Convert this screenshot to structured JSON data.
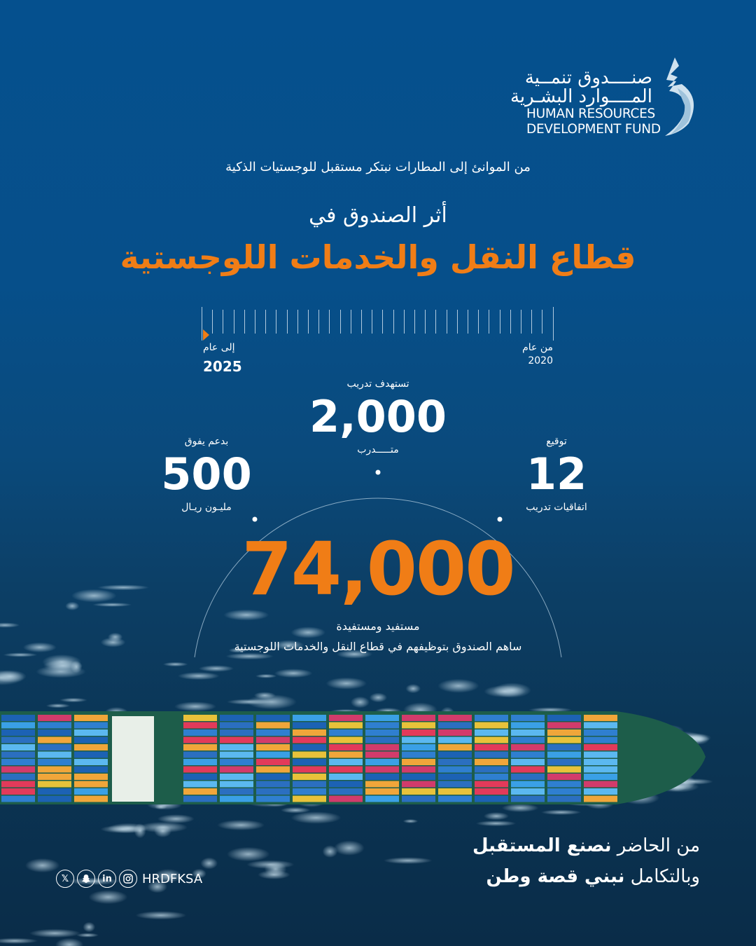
{
  "logo": {
    "arabic_line1": "صنــــدوق تنمــية",
    "arabic_line2": "المــــوارد البشـرية",
    "english_line1": "HUMAN RESOURCES",
    "english_line2": "DEVELOPMENT FUND"
  },
  "tagline": "من الموانئ إلى المطارات نبتكر مستقبل للوجستيات الذكية",
  "subtitle": "أثر الصندوق في",
  "title": "قطاع النقل والخدمات اللوجستية",
  "timeline": {
    "from_label": "من عام",
    "from_year": "2020",
    "to_label": "إلى عام",
    "to_year": "2025",
    "accent_color": "#f07d16"
  },
  "stats": {
    "trainees": {
      "top": "تستهدف تدريب",
      "value": "2,000",
      "bottom": "متـــــدرب"
    },
    "support": {
      "top": "بدعم يفوق",
      "value": "500",
      "bottom": "مليـون ريـال"
    },
    "agreements": {
      "top": "توقيع",
      "value": "12",
      "bottom": "اتفاقيات تدريب"
    },
    "beneficiaries": {
      "value": "74,000",
      "label": "مستفيد ومستفيدة",
      "description": "ساهم الصندوق بتوظيفهم في قطاع النقل والخدمات اللوجستية"
    }
  },
  "slogan": {
    "line1_regular": "من الحاضر ",
    "line1_bold": "نصنع المستقبل",
    "line2_regular": "وبالتكامل ",
    "line2_bold": "نبني قصة وطن"
  },
  "social": {
    "handle": "HRDFKSA",
    "icons": [
      "x-icon",
      "snapchat-icon",
      "linkedin-icon",
      "instagram-icon"
    ]
  },
  "colors": {
    "accent": "#f07d16",
    "background": "#05508e"
  }
}
